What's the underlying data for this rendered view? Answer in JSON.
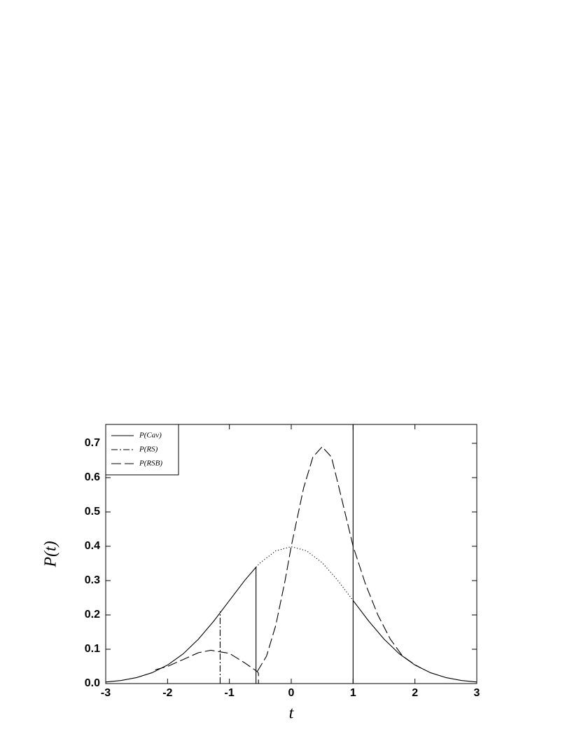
{
  "chart_data": {
    "type": "line",
    "x_label": "t",
    "y_label": "P(t)",
    "xlim": [
      -3,
      3
    ],
    "ylim": [
      0,
      0.755
    ],
    "xticks": [
      -3,
      -2,
      -1,
      0,
      1,
      2,
      3
    ],
    "yticks": [
      {
        "value": 0,
        "label": "0.0"
      },
      0.1,
      0.2,
      0.3,
      0.4,
      0.5,
      0.6,
      0.7
    ],
    "legend": "upper left",
    "series": [
      {
        "name": "P(Cav)",
        "color": "#000000",
        "line_style": "solid",
        "x": [
          -3,
          -2.75,
          -2.5,
          -2.25,
          -2,
          -1.75,
          -1.5,
          -1.25,
          -1,
          -0.75,
          -0.57,
          -0.57,
          null,
          1,
          1,
          null,
          1,
          1.25,
          1.5,
          1.75,
          2,
          2.25,
          2.5,
          2.75,
          3
        ],
        "values": [
          0.0044,
          0.0091,
          0.0175,
          0.0317,
          0.054,
          0.0863,
          0.1295,
          0.1826,
          0.242,
          0.3011,
          0.339,
          0,
          null,
          0.755,
          0,
          null,
          0.242,
          0.1826,
          0.1295,
          0.0863,
          0.054,
          0.0317,
          0.0175,
          0.0091,
          0.0044
        ]
      },
      {
        "name": "P(RS)",
        "color": "#000000",
        "line_style": "dashdot",
        "x": [
          -1.15,
          -1.15
        ],
        "values": [
          0,
          0.21
        ]
      },
      {
        "name": "P(RSB)",
        "color": "#000000",
        "line_style": "dashed",
        "x": [
          -2.2,
          -2,
          -1.75,
          -1.5,
          -1.3,
          -1,
          -0.75,
          -0.55,
          -0.53,
          -0.53,
          null,
          -0.55,
          -0.4,
          -0.25,
          -0.1,
          0,
          0.2,
          0.35,
          0.5,
          0.65,
          0.8,
          1,
          1.2,
          1.4,
          1.6,
          1.8,
          2,
          2.1
        ],
        "values": [
          0.04,
          0.05,
          0.07,
          0.09,
          0.097,
          0.088,
          0.06,
          0.035,
          0.03,
          0,
          null,
          0.035,
          0.08,
          0.17,
          0.3,
          0.4,
          0.57,
          0.66,
          0.69,
          0.66,
          0.55,
          0.4,
          0.29,
          0.2,
          0.13,
          0.08,
          0.055,
          0.045
        ]
      },
      {
        "color": "#000000",
        "line_style": "dotted",
        "x": [
          -0.57,
          -0.5,
          -0.25,
          0,
          0.25,
          0.5,
          0.75,
          1
        ],
        "values": [
          0.339,
          0.3521,
          0.3867,
          0.3989,
          0.3867,
          0.3521,
          0.3011,
          0.242
        ]
      }
    ]
  }
}
